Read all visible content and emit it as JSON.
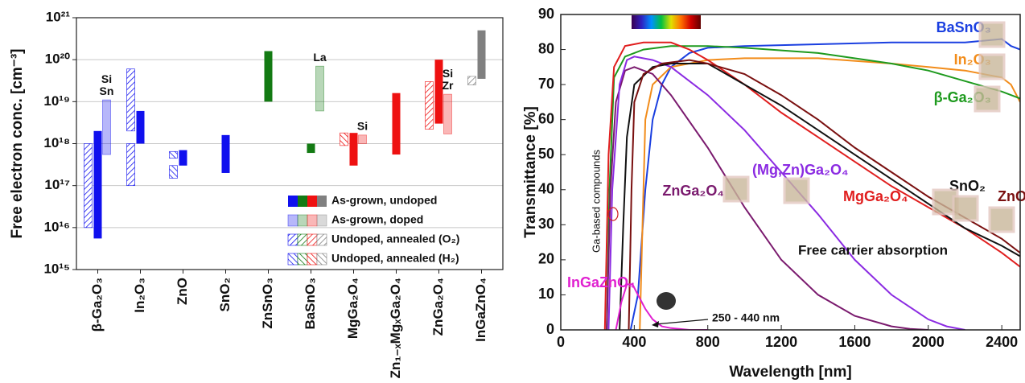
{
  "chart_data": [
    {
      "type": "bar",
      "log_scale": true,
      "grid": true,
      "y_label": "Free electron conc. [cm⁻³]",
      "categories": [
        "β-Ga₂O₃",
        "In₂O₃",
        "ZnO",
        "SnO₂",
        "ZnSnO₃",
        "BaSnO₃",
        "MgGa₂O₄",
        "Zn₁₋ₓMgₓGa₂O₄",
        "ZnGa₂O₄",
        "InGaZnO₄"
      ],
      "colors": [
        "#1010ee",
        "#1010ee",
        "#1010ee",
        "#1010ee",
        "#137a13",
        "#137a13",
        "#ee1111",
        "#ee1111",
        "#ee1111",
        "#808080"
      ],
      "ylim": [
        1000000000000000.0,
        1e+21
      ],
      "yticks": [
        {
          "value": 1000000000000000.0,
          "label": "10¹⁵"
        },
        {
          "value": 1e+16,
          "label": "10¹⁶"
        },
        {
          "value": 1e+17,
          "label": "10¹⁷"
        },
        {
          "value": 1e+18,
          "label": "10¹⁸"
        },
        {
          "value": 1e+19,
          "label": "10¹⁹"
        },
        {
          "value": 1e+20,
          "label": "10²⁰"
        },
        {
          "value": 1e+21,
          "label": "10²¹"
        }
      ],
      "series": [
        {
          "name": "As-grown, undoped",
          "fill": "solid",
          "values": [
            [
              [
                5500000000000000.0,
                2e+18
              ]
            ],
            [
              [
                1e+18,
                6e+18
              ]
            ],
            [
              [
                3e+17,
                7e+17
              ]
            ],
            [
              [
                2e+17,
                1.6e+18
              ]
            ],
            [
              [
                1e+19,
                1.6e+20
              ]
            ],
            [
              [
                6e+17,
                1e+18
              ]
            ],
            [
              [
                3e+17,
                1.8e+18
              ]
            ],
            [
              [
                5.5e+17,
                1.6e+19
              ]
            ],
            [
              [
                3e+18,
                1e+20
              ]
            ],
            [
              [
                3.5e+19,
                5e+20
              ]
            ]
          ]
        },
        {
          "name": "As-grown, doped",
          "fill": "light",
          "values": [
            [
              [
                5.5e+17,
                1.1e+19
              ]
            ],
            null,
            null,
            null,
            null,
            [
              [
                6e+18,
                7e+19
              ]
            ],
            [
              [
                1e+18,
                1.6e+18
              ]
            ],
            null,
            [
              [
                1.7e+18,
                1.5e+19
              ]
            ],
            null
          ],
          "value_labels": [
            [
              "Si",
              "Sn"
            ],
            null,
            null,
            null,
            null,
            [
              "La"
            ],
            [
              "Si"
            ],
            null,
            [
              "Si",
              "Zr"
            ],
            null
          ]
        },
        {
          "name": "Undoped, annealed (O₂)",
          "fill": "hatch-up",
          "values": [
            [
              [
                1e+16,
                1e+18
              ]
            ],
            [
              [
                1e+17,
                1e+18
              ],
              [
                2e+18,
                6e+19
              ]
            ],
            null,
            null,
            null,
            null,
            null,
            null,
            [
              [
                2.2e+18,
                3e+19
              ]
            ],
            [
              [
                2.5e+19,
                4e+19
              ]
            ]
          ]
        },
        {
          "name": "Undoped, annealed (H₂)",
          "fill": "hatch-down",
          "values": [
            null,
            null,
            [
              [
                1.5e+17,
                3e+17
              ],
              [
                4.5e+17,
                6.5e+17
              ]
            ],
            null,
            null,
            null,
            [
              [
                9e+17,
                1.8e+18
              ]
            ],
            null,
            null,
            null
          ]
        }
      ]
    },
    {
      "type": "line",
      "x_label": "Wavelength [nm]",
      "y_label": "Transmittance [%]",
      "xlim": [
        0,
        2500
      ],
      "xticks": [
        0,
        400,
        800,
        1200,
        1600,
        2000,
        2400
      ],
      "ylim": [
        0,
        90
      ],
      "yticks": [
        0,
        10,
        20,
        30,
        40,
        50,
        60,
        70,
        80,
        90
      ],
      "annotations": [
        "Free carrier absorption",
        "250 - 440 nm",
        "Ga-based compounds"
      ],
      "series": [
        {
          "name": "BaSnO₃",
          "color": "#1a3fe0",
          "x": [
            380,
            420,
            460,
            500,
            550,
            600,
            700,
            800,
            1000,
            1400,
            1800,
            2200,
            2400,
            2450,
            2500
          ],
          "values": [
            0,
            10,
            40,
            60,
            70,
            75,
            79,
            80.5,
            81,
            81.5,
            82,
            82,
            83,
            81,
            80
          ]
        },
        {
          "name": "In₂O₃",
          "color": "#f28c1a",
          "x": [
            430,
            445,
            460,
            500,
            600,
            800,
            1000,
            1400,
            1800,
            2000,
            2200,
            2400,
            2450,
            2500
          ],
          "values": [
            0,
            30,
            60,
            70,
            75,
            77,
            77.5,
            77.5,
            76,
            75,
            74,
            72,
            70,
            65
          ]
        },
        {
          "name": "β-Ga₂O₃",
          "color": "#1e9a1e",
          "x": [
            250,
            265,
            290,
            350,
            450,
            600,
            800,
            1000,
            1400,
            1800,
            2000,
            2200,
            2400,
            2500
          ],
          "values": [
            0,
            40,
            72,
            78,
            80,
            81,
            81,
            80.5,
            79,
            76,
            74,
            71,
            68,
            66
          ]
        },
        {
          "name": "ZnGa₂O₄",
          "color": "#7a1a6e",
          "x": [
            250,
            270,
            300,
            350,
            400,
            500,
            600,
            800,
            1000,
            1200,
            1400,
            1600,
            1800,
            1900,
            2000
          ],
          "values": [
            0,
            40,
            65,
            74,
            75,
            73,
            67,
            52,
            35,
            20,
            10,
            4,
            1,
            0.3,
            0
          ]
        },
        {
          "name": "(Mg,Zn)Ga₂O₄",
          "color": "#8b2be2",
          "x": [
            260,
            280,
            320,
            360,
            400,
            500,
            600,
            800,
            1000,
            1200,
            1400,
            1600,
            1800,
            2000,
            2100,
            2200
          ],
          "values": [
            0,
            40,
            70,
            77,
            78,
            77,
            75,
            67,
            57,
            45,
            33,
            20,
            10,
            3,
            1,
            0
          ]
        },
        {
          "name": "MgGa₂O₄",
          "color": "#e01e1e",
          "x": [
            240,
            260,
            290,
            350,
            450,
            600,
            700,
            800,
            1000,
            1200,
            1400,
            1600,
            1800,
            2000,
            2200,
            2400,
            2500
          ],
          "values": [
            0,
            50,
            75,
            81,
            82,
            82,
            80,
            77,
            70,
            62,
            55,
            48,
            41,
            35,
            29,
            22,
            18
          ]
        },
        {
          "name": "SnO₂",
          "color": "#111111",
          "x": [
            320,
            340,
            360,
            400,
            500,
            600,
            800,
            900,
            1000,
            1200,
            1400,
            1600,
            1800,
            2000,
            2200,
            2400,
            2500
          ],
          "values": [
            0,
            30,
            55,
            70,
            75,
            76,
            76,
            73,
            70,
            64,
            57,
            50,
            43,
            36,
            29,
            24,
            21
          ]
        },
        {
          "name": "ZnO",
          "color": "#7a1010",
          "x": [
            370,
            385,
            400,
            450,
            550,
            700,
            800,
            1000,
            1200,
            1400,
            1600,
            1800,
            2000,
            2200,
            2400,
            2500
          ],
          "values": [
            0,
            40,
            65,
            73,
            76,
            77,
            76,
            73,
            67,
            60,
            52,
            45,
            38,
            32,
            26,
            22
          ]
        },
        {
          "name": "InGaZnO₄",
          "color": "#e020d0",
          "x": [
            300,
            330,
            360,
            390,
            420,
            460,
            500,
            550,
            600,
            700,
            800
          ],
          "values": [
            0,
            8,
            13,
            13,
            10,
            6,
            3,
            1,
            0.5,
            0,
            0
          ]
        }
      ]
    }
  ]
}
